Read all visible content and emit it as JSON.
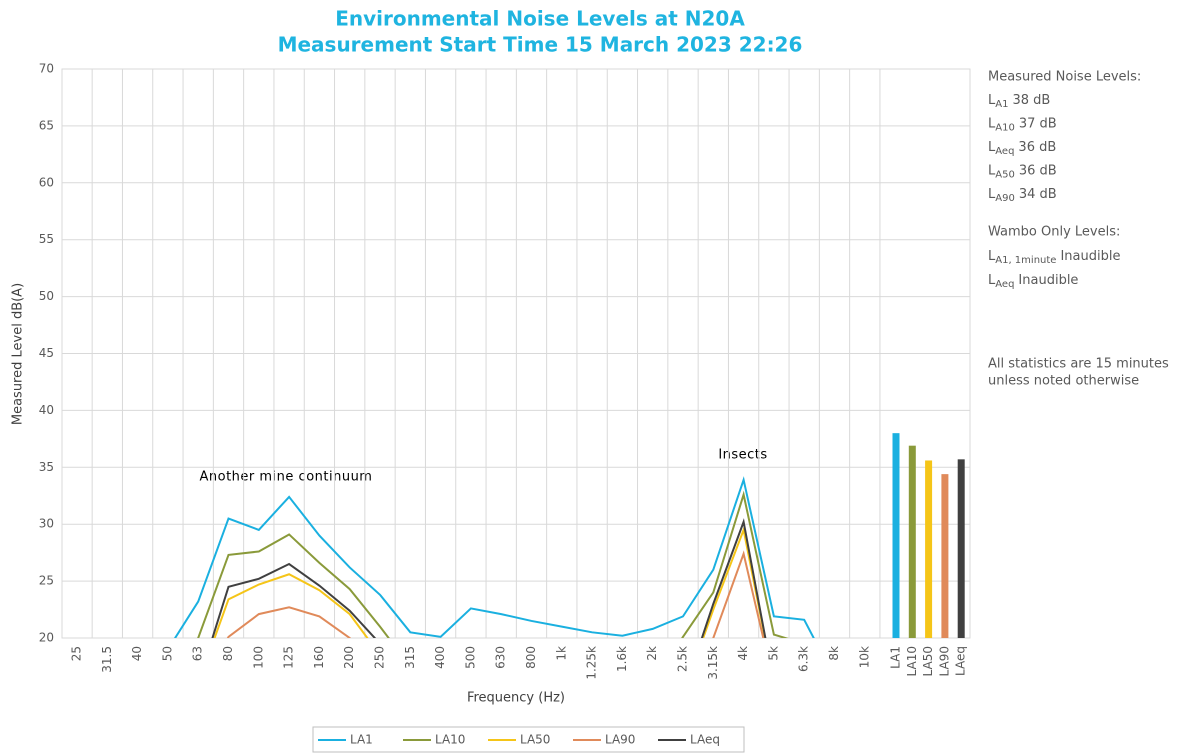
{
  "chart_data": {
    "type": "line",
    "title": [
      "Environmental Noise Levels at N20A",
      "Measurement Start Time 15 March 2023 22:26"
    ],
    "x_label": "Frequency (Hz)",
    "y_label": "Measured Level dB(A)",
    "categories": [
      "25",
      "31.5",
      "40",
      "50",
      "63",
      "80",
      "100",
      "125",
      "160",
      "200",
      "250",
      "315",
      "400",
      "500",
      "630",
      "800",
      "1k",
      "1.25k",
      "1.6k",
      "2k",
      "2.5k",
      "3.15k",
      "4k",
      "5k",
      "6.3k",
      "8k",
      "10k"
    ],
    "series": [
      {
        "name": "LA1",
        "color": "#1ab0e0",
        "values": [
          null,
          null,
          null,
          19,
          23.2,
          30.5,
          29.5,
          32.4,
          29.0,
          26.2,
          23.8,
          20.5,
          20.1,
          22.6,
          22.1,
          21.5,
          21.0,
          20.5,
          20.2,
          20.8,
          21.9,
          26.0,
          33.9,
          21.9,
          21.6,
          16.5,
          null
        ]
      },
      {
        "name": "LA10",
        "color": "#8a9a3a",
        "values": [
          null,
          null,
          null,
          15,
          20.0,
          27.3,
          27.6,
          29.1,
          26.6,
          24.3,
          21.0,
          17.5,
          null,
          null,
          null,
          null,
          null,
          null,
          null,
          16,
          20.1,
          24.0,
          32.6,
          20.3,
          19.5,
          null,
          null
        ]
      },
      {
        "name": "LA50",
        "color": "#f5c518",
        "values": [
          null,
          null,
          null,
          null,
          16,
          23.4,
          24.7,
          25.6,
          24.2,
          22.1,
          18.5,
          null,
          null,
          null,
          null,
          null,
          null,
          null,
          null,
          null,
          15,
          22.5,
          29.5,
          16,
          null,
          null,
          null
        ]
      },
      {
        "name": "LA90",
        "color": "#e08a5a",
        "values": [
          null,
          null,
          null,
          null,
          15,
          20.1,
          22.1,
          22.7,
          21.9,
          20.0,
          17,
          null,
          null,
          null,
          null,
          null,
          null,
          null,
          null,
          null,
          15,
          20.0,
          27.4,
          16,
          null,
          null,
          null
        ]
      },
      {
        "name": "LAeq",
        "color": "#404040",
        "values": [
          null,
          null,
          null,
          null,
          16,
          24.5,
          25.2,
          26.5,
          24.6,
          22.4,
          19.5,
          null,
          null,
          null,
          null,
          null,
          null,
          null,
          null,
          null,
          15,
          23.0,
          30.2,
          16,
          null,
          null,
          null
        ]
      }
    ],
    "bars": {
      "categories": [
        "LA1",
        "LA10",
        "LA50",
        "LA90",
        "LAeq"
      ],
      "values": [
        38.0,
        36.9,
        35.6,
        34.4,
        35.7
      ],
      "colors": [
        "#1ab0e0",
        "#8a9a3a",
        "#f5c518",
        "#e08a5a",
        "#404040"
      ]
    },
    "ylim": [
      20,
      70
    ],
    "yticks": [
      20,
      25,
      30,
      35,
      40,
      45,
      50,
      55,
      60,
      65,
      70
    ],
    "grid": true,
    "legend": "bottom",
    "annotations": [
      "Another mine continuum",
      "Insects"
    ]
  },
  "notes": {
    "measured_heading": "Measured Noise Levels:",
    "measured": [
      {
        "symbol": "L",
        "sub": "A1",
        "text": "38 dB"
      },
      {
        "symbol": "L",
        "sub": "A10",
        "text": "37 dB"
      },
      {
        "symbol": "L",
        "sub": "Aeq",
        "text": "36 dB"
      },
      {
        "symbol": "L",
        "sub": "A50",
        "text": "36 dB"
      },
      {
        "symbol": "L",
        "sub": "A90",
        "text": "34 dB"
      }
    ],
    "wambo_heading": "Wambo Only Levels:",
    "wambo": [
      {
        "symbol": "L",
        "sub": "A1, 1minute",
        "text": "Inaudible"
      },
      {
        "symbol": "L",
        "sub": "Aeq",
        "text": "Inaudible"
      }
    ],
    "footnote": [
      "All statistics are 15 minutes",
      "unless noted otherwise"
    ]
  }
}
